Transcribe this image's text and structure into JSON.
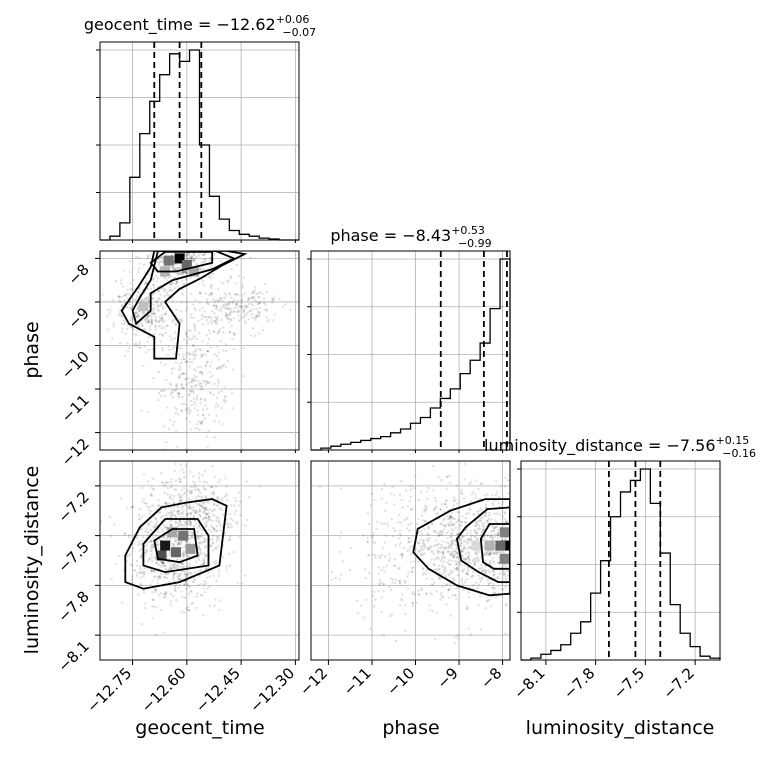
{
  "chart_data": {
    "type": "corner",
    "parameters": [
      "geocent_time",
      "phase",
      "luminosity_distance"
    ],
    "titles": [
      {
        "param": "geocent_time",
        "median": "−12.62",
        "upper": "+0.06",
        "lower": "−0.07"
      },
      {
        "param": "phase",
        "median": "−8.43",
        "upper": "+0.53",
        "lower": "−0.99"
      },
      {
        "param": "luminosity_distance",
        "median": "−7.56",
        "upper": "+0.15",
        "lower": "−0.16"
      }
    ],
    "axis_labels": {
      "geocent_time": "geocent_time",
      "phase": "phase",
      "luminosity_distance": "luminosity_distance"
    },
    "ticks": {
      "geocent_time": [
        "−12.75",
        "−12.60",
        "−12.45",
        "−12.30"
      ],
      "phase": [
        "−12",
        "−11",
        "−10",
        "−9",
        "−8"
      ],
      "luminosity_distance": [
        "−8.1",
        "−7.8",
        "−7.5",
        "−7.2"
      ]
    },
    "tick_values": {
      "geocent_time": [
        -12.75,
        -12.6,
        -12.45,
        -12.3
      ],
      "phase": [
        -12,
        -11,
        -10,
        -9,
        -8
      ],
      "luminosity_distance": [
        -8.1,
        -7.8,
        -7.5,
        -7.2
      ]
    },
    "ranges": {
      "geocent_time": [
        -12.84,
        -12.29
      ],
      "phase": [
        -12.4,
        -7.83
      ],
      "luminosity_distance": [
        -8.25,
        -7.05
      ]
    },
    "quantiles": {
      "geocent_time": [
        -12.69,
        -12.62,
        -12.56
      ],
      "phase": [
        -9.42,
        -8.43,
        -7.9
      ],
      "luminosity_distance": [
        -7.72,
        -7.56,
        -7.41
      ]
    },
    "histograms": {
      "geocent_time": {
        "edges": [
          -12.84,
          -12.8125,
          -12.785,
          -12.7575,
          -12.73,
          -12.7025,
          -12.675,
          -12.6475,
          -12.62,
          -12.5925,
          -12.565,
          -12.5375,
          -12.51,
          -12.4825,
          -12.455,
          -12.4275,
          -12.4,
          -12.3725,
          -12.345,
          -12.3175,
          -12.29
        ],
        "counts": [
          0.0,
          0.02,
          0.09,
          0.33,
          0.56,
          0.73,
          0.87,
          0.98,
          0.94,
          1.0,
          0.5,
          0.23,
          0.11,
          0.05,
          0.03,
          0.02,
          0.01,
          0.005,
          0.0,
          0.0
        ]
      },
      "phase": {
        "edges": [
          -12.4,
          -12.1715,
          -11.943,
          -11.7145,
          -11.486,
          -11.2575,
          -11.029,
          -10.8005,
          -10.572,
          -10.3435,
          -10.115,
          -9.8865,
          -9.658,
          -9.4295,
          -9.201,
          -8.9725,
          -8.744,
          -8.5155,
          -8.287,
          -8.0585,
          -7.83
        ],
        "counts": [
          0.0,
          0.01,
          0.02,
          0.03,
          0.04,
          0.05,
          0.06,
          0.07,
          0.09,
          0.11,
          0.14,
          0.17,
          0.22,
          0.27,
          0.32,
          0.4,
          0.47,
          0.56,
          0.74,
          1.0
        ]
      },
      "luminosity_distance": {
        "edges": [
          -8.25,
          -8.19,
          -8.13,
          -8.07,
          -8.01,
          -7.95,
          -7.89,
          -7.83,
          -7.77,
          -7.71,
          -7.65,
          -7.59,
          -7.53,
          -7.47,
          -7.41,
          -7.35,
          -7.29,
          -7.23,
          -7.17,
          -7.11,
          -7.05
        ],
        "counts": [
          0.0,
          0.01,
          0.03,
          0.05,
          0.08,
          0.14,
          0.2,
          0.35,
          0.52,
          0.75,
          0.88,
          0.94,
          1.0,
          0.82,
          0.56,
          0.29,
          0.14,
          0.07,
          0.02,
          0.01
        ]
      }
    },
    "grid": true
  }
}
